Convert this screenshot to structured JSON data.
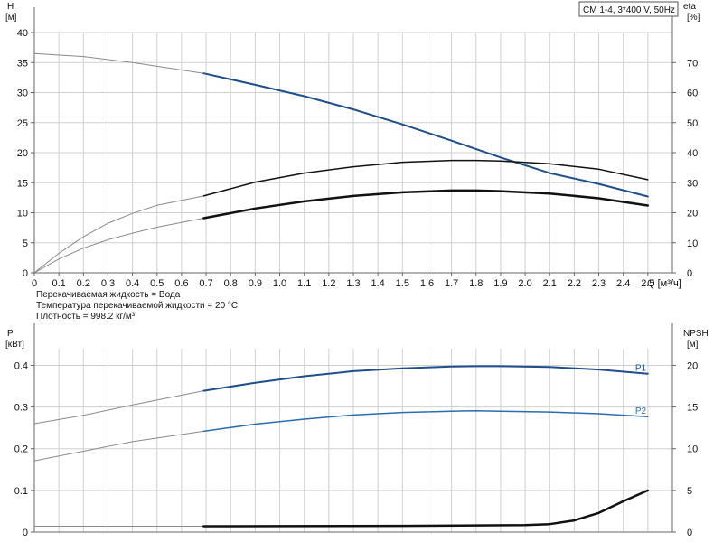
{
  "chart_data": [
    {
      "type": "line",
      "legend_box": "CM 1-4, 3*400 V, 50Hz",
      "left_axis": {
        "label_top": "H",
        "label_unit": "[м]",
        "ticks": [
          0,
          5,
          10,
          15,
          20,
          25,
          30,
          35,
          40
        ],
        "range": [
          0,
          40
        ]
      },
      "right_axis": {
        "label_top": "eta",
        "label_unit": "[%]",
        "ticks": [
          0,
          10,
          20,
          30,
          40,
          50,
          60,
          70
        ],
        "range": [
          0,
          80
        ]
      },
      "x_axis": {
        "label": "Q [м³/ч]",
        "ticks": [
          "0",
          "0.1",
          "0.2",
          "0.3",
          "0.4",
          "0.5",
          "0.6",
          "0.7",
          "0.8",
          "0.9",
          "1.0",
          "1.1",
          "1.2",
          "1.3",
          "1.4",
          "1.5",
          "1.6",
          "1.7",
          "1.8",
          "1.9",
          "2.0",
          "2.1",
          "2.2",
          "2.3",
          "2.4",
          "2.5"
        ],
        "range": [
          0,
          2.6
        ]
      },
      "grid": true,
      "op_start": 0.69,
      "series": [
        {
          "axis": "left",
          "color": "#1f4e8c",
          "width": 2,
          "x": [
            0,
            0.2,
            0.4,
            0.69,
            0.9,
            1.1,
            1.3,
            1.5,
            1.7,
            1.9,
            2.1,
            2.3,
            2.5
          ],
          "y": [
            36.5,
            36.0,
            35.0,
            33.2,
            31.3,
            29.4,
            27.2,
            24.7,
            22.0,
            19.2,
            16.6,
            14.8,
            12.7
          ]
        },
        {
          "axis": "right",
          "color": "#111111",
          "width": 1.5,
          "x": [
            0,
            0.1,
            0.2,
            0.3,
            0.4,
            0.5,
            0.69,
            0.9,
            1.1,
            1.3,
            1.5,
            1.7,
            1.8,
            1.9,
            2.1,
            2.3,
            2.5
          ],
          "y": [
            0,
            6.5,
            12,
            16.5,
            19.8,
            22.5,
            25.6,
            30.2,
            33.2,
            35.3,
            36.8,
            37.4,
            37.4,
            37.2,
            36.3,
            34.5,
            31.0
          ]
        },
        {
          "axis": "left",
          "color": "#111111",
          "width": 2.5,
          "x": [
            0,
            0.1,
            0.2,
            0.3,
            0.4,
            0.5,
            0.69,
            0.9,
            1.1,
            1.3,
            1.5,
            1.7,
            1.8,
            1.9,
            2.1,
            2.3,
            2.5
          ],
          "y": [
            0,
            2.3,
            4.1,
            5.5,
            6.6,
            7.6,
            9.1,
            10.7,
            11.9,
            12.8,
            13.4,
            13.7,
            13.7,
            13.6,
            13.2,
            12.4,
            11.2
          ]
        }
      ],
      "notes": [
        "Перекачиваемая жидкость = Вода",
        "Температура перекачиваемой жидкости = 20 °C",
        "Плотность = 998.2 кг/м³"
      ]
    },
    {
      "type": "line",
      "left_axis": {
        "label_top": "P",
        "label_unit": "[кВт]",
        "ticks": [
          0,
          0.1,
          0.2,
          0.3,
          0.4
        ],
        "range": [
          0,
          0.44
        ]
      },
      "right_axis": {
        "label_top": "NPSH",
        "label_unit": "[м]",
        "ticks": [
          0,
          5,
          10,
          15,
          20
        ],
        "range": [
          0,
          22
        ]
      },
      "x_axis": {
        "range": [
          0,
          2.6
        ]
      },
      "grid": true,
      "op_start": 0.69,
      "series": [
        {
          "name": "P1",
          "axis": "left",
          "color": "#1f4e8c",
          "width": 2,
          "x": [
            0,
            0.2,
            0.4,
            0.69,
            0.9,
            1.1,
            1.3,
            1.5,
            1.7,
            1.8,
            1.9,
            2.1,
            2.3,
            2.5
          ],
          "y": [
            0.26,
            0.28,
            0.305,
            0.339,
            0.358,
            0.374,
            0.386,
            0.393,
            0.397,
            0.398,
            0.398,
            0.396,
            0.39,
            0.38
          ]
        },
        {
          "name": "P2",
          "axis": "left",
          "color": "#2b6cb0",
          "width": 1.5,
          "x": [
            0,
            0.2,
            0.4,
            0.69,
            0.9,
            1.1,
            1.3,
            1.5,
            1.7,
            1.8,
            1.9,
            2.1,
            2.3,
            2.5
          ],
          "y": [
            0.171,
            0.194,
            0.217,
            0.242,
            0.259,
            0.271,
            0.281,
            0.287,
            0.29,
            0.291,
            0.29,
            0.288,
            0.284,
            0.277
          ]
        },
        {
          "axis": "right",
          "color": "#111111",
          "width": 2.5,
          "x": [
            0,
            0.69,
            1.0,
            1.5,
            1.8,
            2.0,
            2.1,
            2.2,
            2.3,
            2.4,
            2.5
          ],
          "y": [
            0.7,
            0.7,
            0.72,
            0.75,
            0.8,
            0.85,
            0.95,
            1.4,
            2.3,
            3.7,
            5.0
          ]
        }
      ]
    }
  ]
}
